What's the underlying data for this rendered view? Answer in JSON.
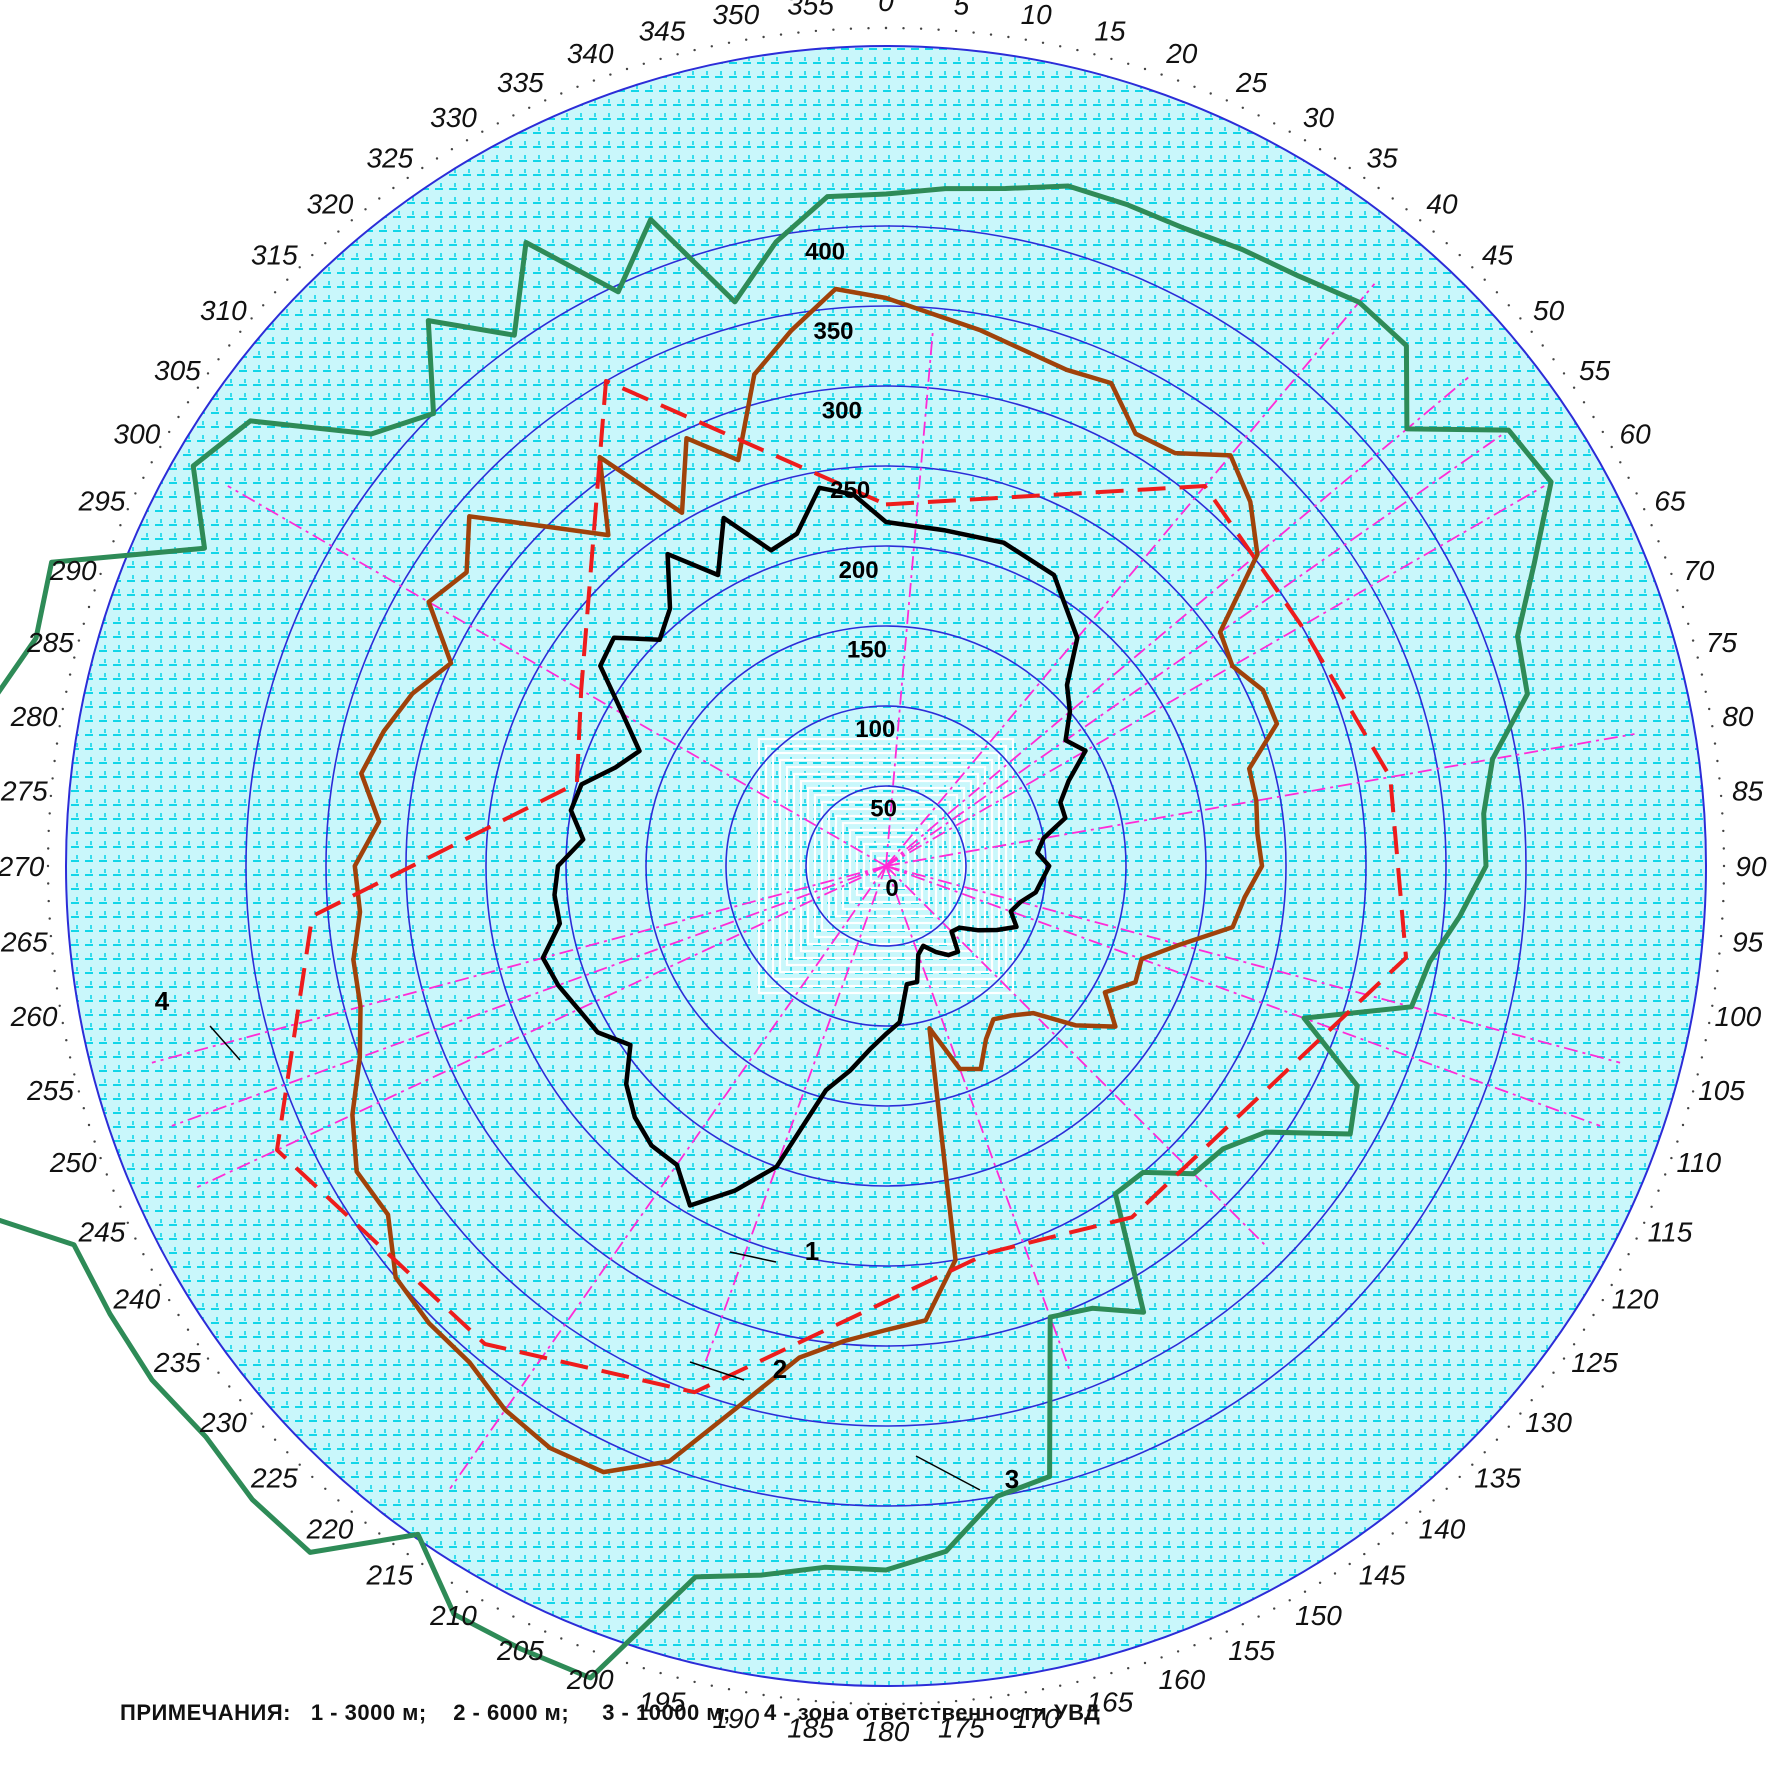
{
  "chart_data": {
    "type": "polar-line",
    "r_ticks": [
      0,
      50,
      100,
      150,
      200,
      250,
      300,
      350,
      400
    ],
    "rlim": [
      0,
      500
    ],
    "azimuth_ticks": [
      0,
      5,
      10,
      15,
      20,
      25,
      30,
      35,
      40,
      45,
      50,
      55,
      60,
      65,
      70,
      75,
      80,
      85,
      90,
      95,
      100,
      105,
      110,
      115,
      120,
      125,
      130,
      135,
      140,
      145,
      150,
      155,
      160,
      165,
      170,
      175,
      180,
      185,
      190,
      195,
      200,
      205,
      210,
      215,
      220,
      225,
      230,
      235,
      240,
      245,
      250,
      255,
      260,
      265,
      270,
      275,
      280,
      285,
      290,
      295,
      300,
      305,
      310,
      315,
      320,
      325,
      330,
      335,
      340,
      345,
      350,
      355
    ],
    "azimuth_direction": "clockwise from north",
    "series": [
      {
        "name": "1",
        "color": "#000000",
        "points": [
          [
            0,
            215
          ],
          [
            10,
            213
          ],
          [
            20,
            215
          ],
          [
            30,
            210
          ],
          [
            40,
            186
          ],
          [
            45,
            160
          ],
          [
            50,
            150
          ],
          [
            55,
            137
          ],
          [
            60,
            144
          ],
          [
            65,
            126
          ],
          [
            70,
            116
          ],
          [
            75,
            116
          ],
          [
            80,
            100
          ],
          [
            85,
            95
          ],
          [
            90,
            102
          ],
          [
            95,
            98
          ],
          [
            100,
            95
          ],
          [
            105,
            87
          ],
          [
            110,
            83
          ],
          [
            115,
            90
          ],
          [
            120,
            80
          ],
          [
            125,
            70
          ],
          [
            130,
            60
          ],
          [
            135,
            58
          ],
          [
            140,
            70
          ],
          [
            145,
            68
          ],
          [
            150,
            62
          ],
          [
            155,
            55
          ],
          [
            160,
            59
          ],
          [
            165,
            75
          ],
          [
            170,
            75
          ],
          [
            175,
            98
          ],
          [
            180,
            105
          ],
          [
            185,
            115
          ],
          [
            190,
            130
          ],
          [
            195,
            145
          ],
          [
            200,
            200
          ],
          [
            205,
            224
          ],
          [
            210,
            245
          ],
          [
            215,
            228
          ],
          [
            220,
            228
          ],
          [
            225,
            222
          ],
          [
            230,
            212
          ],
          [
            235,
            195
          ],
          [
            240,
            208
          ],
          [
            245,
            212
          ],
          [
            250,
            218
          ],
          [
            255,
            222
          ],
          [
            260,
            207
          ],
          [
            265,
            208
          ],
          [
            270,
            205
          ],
          [
            275,
            190
          ],
          [
            280,
            200
          ],
          [
            285,
            197
          ],
          [
            290,
            180
          ],
          [
            295,
            170
          ],
          [
            300,
            190
          ],
          [
            305,
            218
          ],
          [
            310,
            222
          ],
          [
            315,
            200
          ],
          [
            320,
            210
          ],
          [
            325,
            238
          ],
          [
            330,
            210
          ],
          [
            335,
            240
          ],
          [
            340,
            210
          ],
          [
            345,
            215
          ],
          [
            350,
            240
          ],
          [
            355,
            233
          ]
        ]
      },
      {
        "name": "2",
        "color": "#a0420a",
        "points": [
          [
            0,
            355
          ],
          [
            10,
            340
          ],
          [
            20,
            330
          ],
          [
            25,
            333
          ],
          [
            30,
            312
          ],
          [
            35,
            315
          ],
          [
            40,
            335
          ],
          [
            45,
            322
          ],
          [
            50,
            303
          ],
          [
            55,
            255
          ],
          [
            60,
            250
          ],
          [
            65,
            260
          ],
          [
            70,
            260
          ],
          [
            75,
            235
          ],
          [
            80,
            235
          ],
          [
            85,
            233
          ],
          [
            90,
            235
          ],
          [
            95,
            225
          ],
          [
            100,
            220
          ],
          [
            105,
            190
          ],
          [
            110,
            170
          ],
          [
            115,
            172
          ],
          [
            120,
            158
          ],
          [
            125,
            175
          ],
          [
            130,
            155
          ],
          [
            135,
            130
          ],
          [
            140,
            122
          ],
          [
            145,
            117
          ],
          [
            150,
            125
          ],
          [
            155,
            140
          ],
          [
            160,
            135
          ],
          [
            165,
            105
          ],
          [
            170,
            250
          ],
          [
            175,
            285
          ],
          [
            180,
            290
          ],
          [
            185,
            298
          ],
          [
            190,
            312
          ],
          [
            195,
            348
          ],
          [
            200,
            396
          ],
          [
            205,
            418
          ],
          [
            210,
            420
          ],
          [
            215,
            415
          ],
          [
            220,
            405
          ],
          [
            225,
            404
          ],
          [
            230,
            400
          ],
          [
            235,
            380
          ],
          [
            240,
            382
          ],
          [
            245,
            368
          ],
          [
            250,
            350
          ],
          [
            255,
            340
          ],
          [
            260,
            338
          ],
          [
            265,
            330
          ],
          [
            270,
            332
          ],
          [
            275,
            318
          ],
          [
            280,
            333
          ],
          [
            285,
            325
          ],
          [
            290,
            315
          ],
          [
            295,
            300
          ],
          [
            300,
            330
          ],
          [
            305,
            320
          ],
          [
            310,
            340
          ],
          [
            315,
            300
          ],
          [
            320,
            270
          ],
          [
            325,
            312
          ],
          [
            330,
            255
          ],
          [
            335,
            295
          ],
          [
            340,
            270
          ],
          [
            345,
            318
          ],
          [
            350,
            340
          ],
          [
            355,
            362
          ]
        ]
      },
      {
        "name": "3",
        "color": "#2e8b57",
        "points": [
          [
            0,
            420
          ],
          [
            5,
            425
          ],
          [
            10,
            430
          ],
          [
            15,
            440
          ],
          [
            20,
            440
          ],
          [
            25,
            440
          ],
          [
            30,
            445
          ],
          [
            35,
            450
          ],
          [
            40,
            460
          ],
          [
            45,
            460
          ],
          [
            50,
            425
          ],
          [
            55,
            475
          ],
          [
            60,
            480
          ],
          [
            65,
            447
          ],
          [
            70,
            420
          ],
          [
            75,
            415
          ],
          [
            80,
            385
          ],
          [
            85,
            375
          ],
          [
            90,
            375
          ],
          [
            95,
            360
          ],
          [
            100,
            345
          ],
          [
            105,
            340
          ],
          [
            110,
            278
          ],
          [
            115,
            325
          ],
          [
            120,
            335
          ],
          [
            125,
            290
          ],
          [
            130,
            275
          ],
          [
            135,
            272
          ],
          [
            140,
            250
          ],
          [
            145,
            250
          ],
          [
            150,
            322
          ],
          [
            155,
            305
          ],
          [
            160,
            300
          ],
          [
            165,
            395
          ],
          [
            170,
            400
          ],
          [
            175,
            430
          ],
          [
            180,
            440
          ],
          [
            185,
            440
          ],
          [
            190,
            450
          ],
          [
            195,
            460
          ],
          [
            200,
            540
          ],
          [
            205,
            540
          ],
          [
            210,
            540
          ],
          [
            215,
            510
          ],
          [
            220,
            560
          ],
          [
            225,
            560
          ],
          [
            230,
            555
          ],
          [
            235,
            560
          ],
          [
            240,
            560
          ],
          [
            245,
            560
          ],
          [
            250,
            620
          ],
          [
            255,
            660
          ],
          [
            260,
            660
          ],
          [
            265,
            560
          ],
          [
            270,
            580
          ],
          [
            275,
            572
          ],
          [
            280,
            570
          ],
          [
            285,
            550
          ],
          [
            290,
            555
          ],
          [
            295,
            470
          ],
          [
            300,
            500
          ],
          [
            305,
            485
          ],
          [
            310,
            420
          ],
          [
            315,
            400
          ],
          [
            320,
            445
          ],
          [
            325,
            405
          ],
          [
            330,
            450
          ],
          [
            335,
            396
          ],
          [
            340,
            430
          ],
          [
            345,
            365
          ],
          [
            350,
            396
          ],
          [
            355,
            420
          ]
        ]
      },
      {
        "name": "4",
        "color": "#ee1c1c",
        "points": [
          [
            0,
            0
          ],
          [
            0,
            226
          ],
          [
            40,
            310
          ],
          [
            60,
            300
          ],
          [
            80,
            320
          ],
          [
            100,
            330
          ],
          [
            145,
            268
          ],
          [
            165,
            250
          ],
          [
            200,
            350
          ],
          [
            220,
            390
          ],
          [
            245,
            420
          ],
          [
            265,
            360
          ],
          [
            285,
            200
          ],
          [
            300,
            220
          ],
          [
            330,
            350
          ],
          [
            0,
            226
          ]
        ]
      }
    ],
    "annotations": [
      "1",
      "2",
      "3",
      "4"
    ],
    "notes": "ПРИМЕЧАНИЯ:   1 - 3000 м;    2 - 6000 м;     3 - 10000 м;     4 - зона ответственности УВД"
  }
}
